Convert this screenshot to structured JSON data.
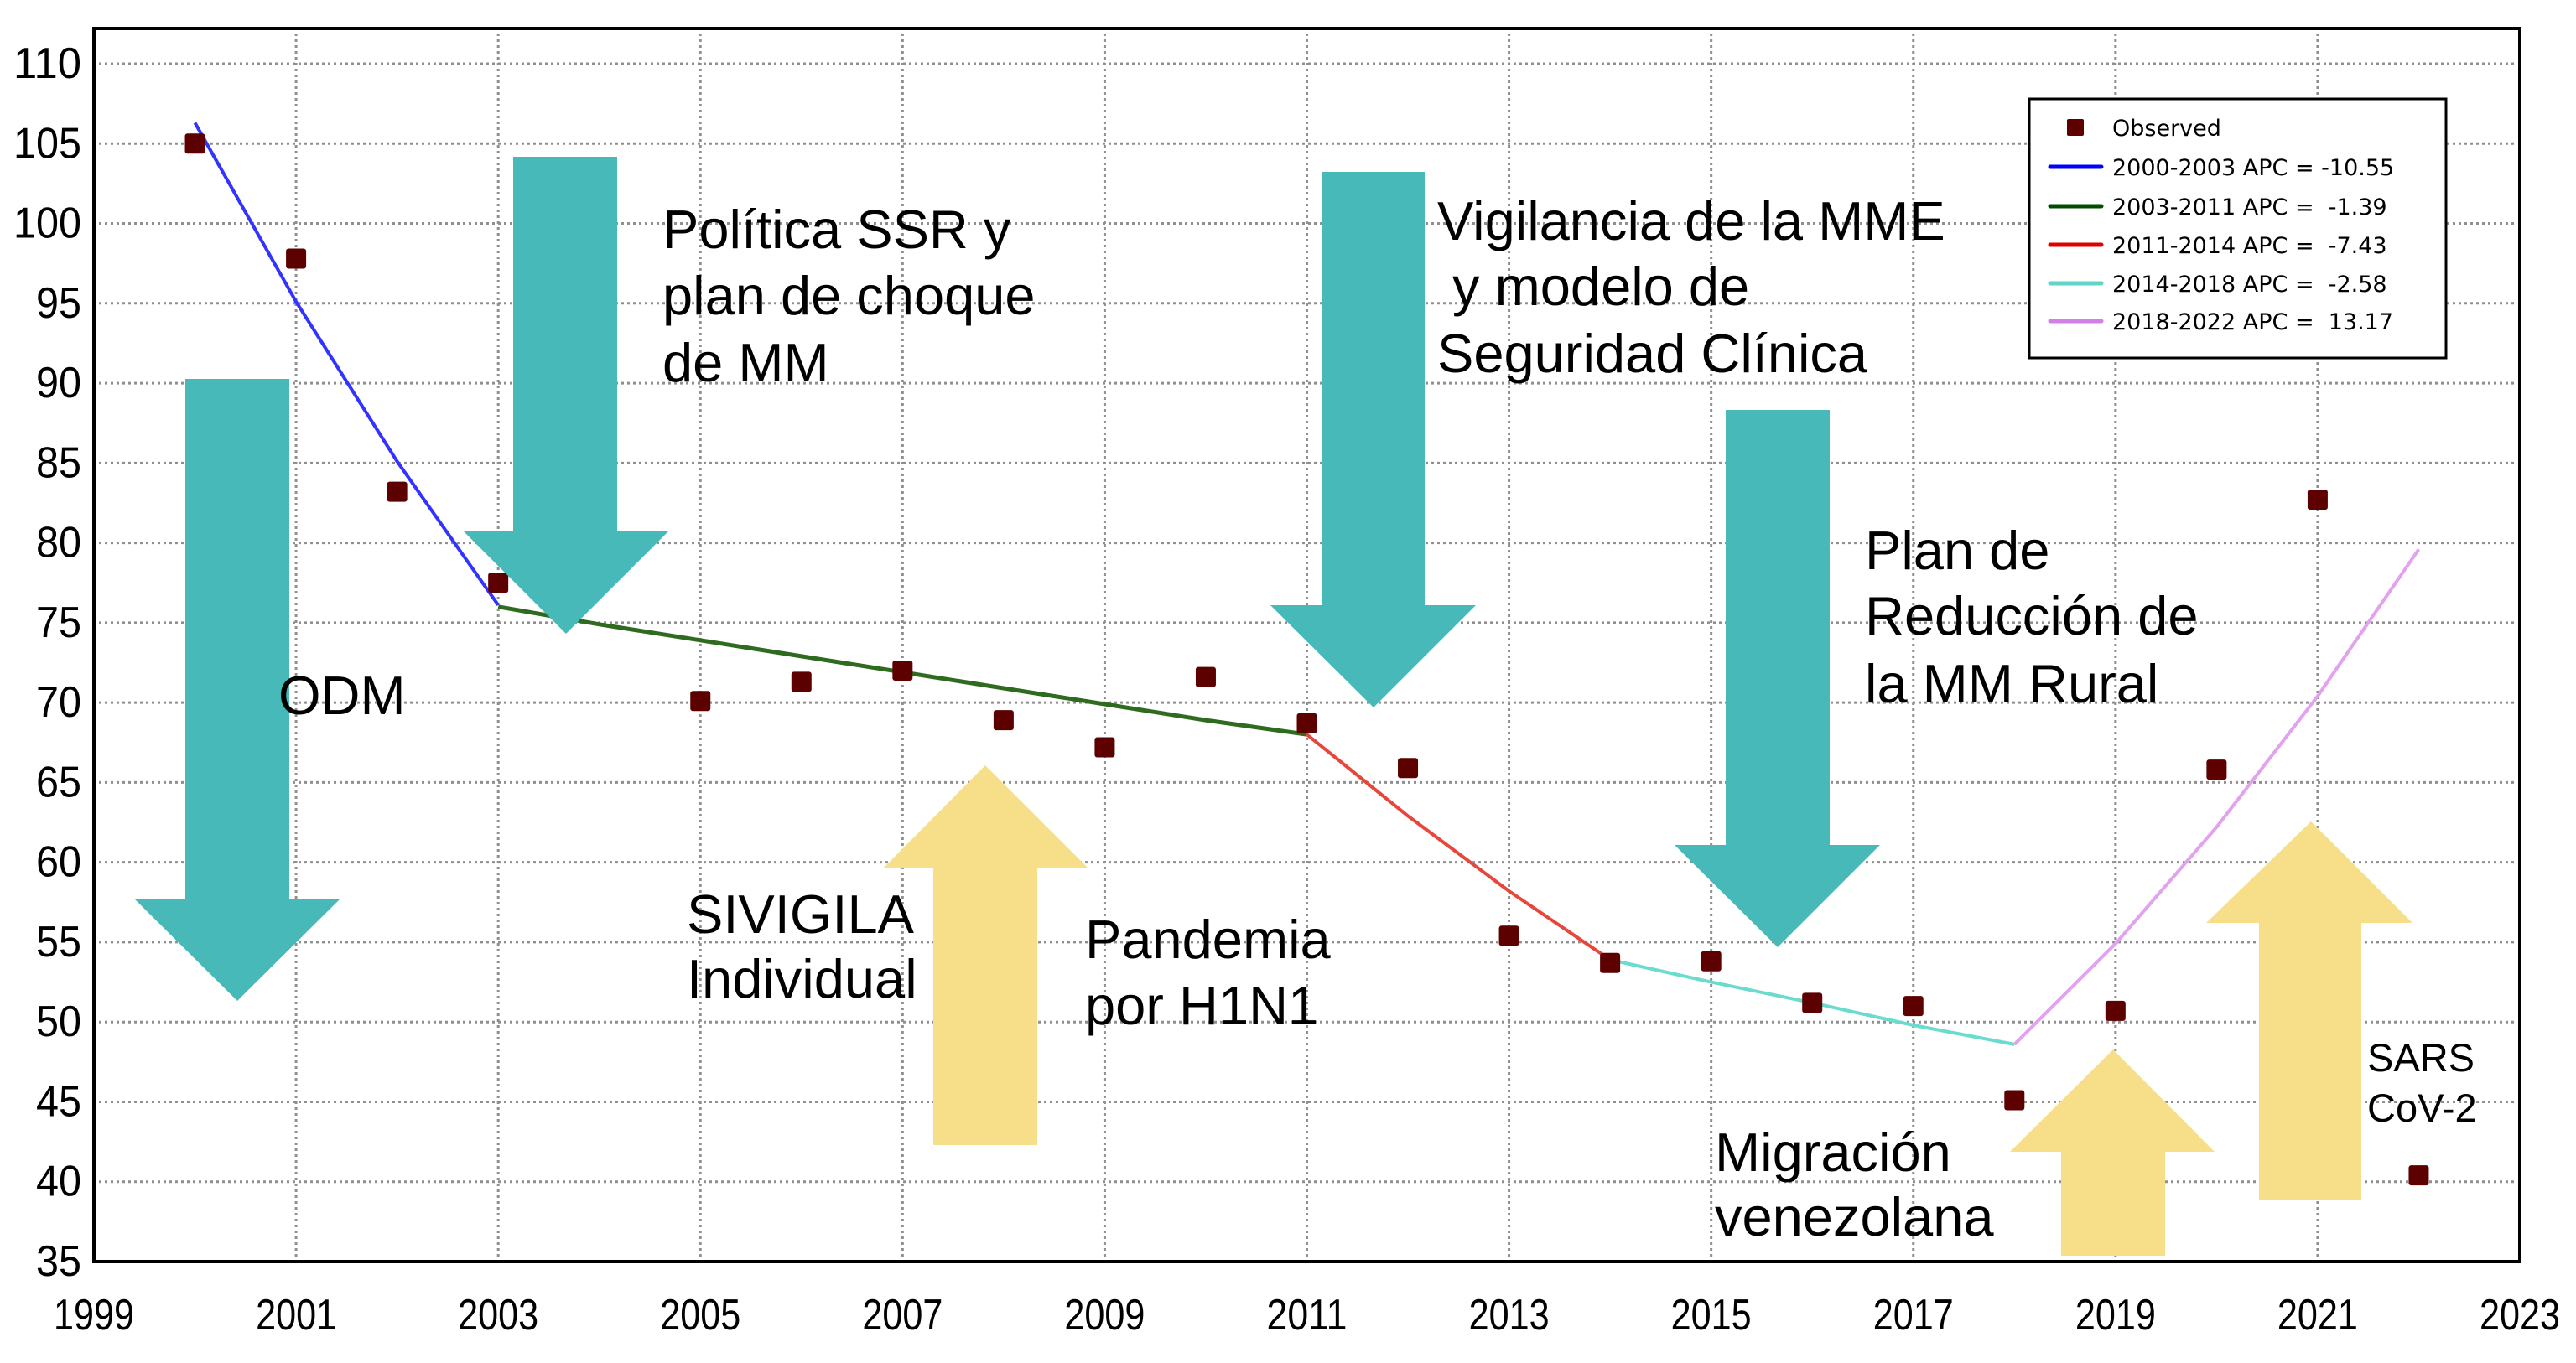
{
  "chart_data": {
    "type": "scatter",
    "title": "",
    "xlabel": "",
    "ylabel": "",
    "xlim": [
      1999,
      2023
    ],
    "ylim": [
      35,
      110
    ],
    "grid": true,
    "legend_position": "top-right",
    "xticks": [
      "1999",
      "2001",
      "2003",
      "2005",
      "2007",
      "2009",
      "2011",
      "2013",
      "2015",
      "2017",
      "2019",
      "2021",
      "2023"
    ],
    "yticks": [
      "35",
      "40",
      "45",
      "50",
      "55",
      "60",
      "65",
      "70",
      "75",
      "80",
      "85",
      "90",
      "95",
      "100",
      "105",
      "110"
    ],
    "observed": {
      "name": "Observed",
      "color": "#5C0000",
      "x": [
        2000,
        2001,
        2002,
        2003,
        2005,
        2006,
        2007,
        2008,
        2009,
        2010,
        2011,
        2012,
        2013,
        2014,
        2015,
        2016,
        2017,
        2018,
        2019,
        2020,
        2021,
        2022
      ],
      "y": [
        105.0,
        97.8,
        83.2,
        77.5,
        70.1,
        71.3,
        72.0,
        68.9,
        67.2,
        71.6,
        68.7,
        65.9,
        55.4,
        53.7,
        53.8,
        51.2,
        51.0,
        45.1,
        50.7,
        65.8,
        82.7,
        40.4
      ]
    },
    "series": [
      {
        "name": "2000-2003 APC = -10.55",
        "color": "#0000FF",
        "x": [
          2000,
          2001,
          2002,
          2003
        ],
        "y": [
          106.3,
          95.1,
          85.1,
          76.1
        ]
      },
      {
        "name": "2003-2011 APC =  -1.39",
        "color": "#004D00",
        "x": [
          2003,
          2004,
          2005,
          2006,
          2007,
          2008,
          2009,
          2010,
          2011
        ],
        "y": [
          76.0,
          74.9,
          73.9,
          72.9,
          71.9,
          70.9,
          69.9,
          68.9,
          68.0
        ]
      },
      {
        "name": "2011-2014 APC =  -7.43",
        "color": "#E00000",
        "x": [
          2011,
          2012,
          2013,
          2014
        ],
        "y": [
          68.0,
          62.9,
          58.2,
          53.9
        ]
      },
      {
        "name": "2014-2018 APC =  -2.58",
        "color": "#5FD5C8",
        "x": [
          2014,
          2015,
          2016,
          2017,
          2018
        ],
        "y": [
          53.9,
          52.5,
          51.2,
          49.8,
          48.6
        ]
      },
      {
        "name": "2018-2022 APC =  13.17",
        "color": "#D27FE6",
        "x": [
          2018,
          2019,
          2020,
          2021,
          2022
        ],
        "y": [
          48.6,
          54.9,
          62.2,
          70.4,
          79.6
        ]
      }
    ],
    "annotations": [
      {
        "lines": [
          "ODM"
        ],
        "direction": "down",
        "color": "#47B9B9"
      },
      {
        "lines": [
          "Política SSR y",
          "plan de choque",
          "de MM"
        ],
        "direction": "down",
        "color": "#47B9B9"
      },
      {
        "lines": [
          "Vigilancia de la MME",
          " y modelo de",
          "Seguridad Clínica"
        ],
        "direction": "down",
        "color": "#47B9B9"
      },
      {
        "lines": [
          "Plan de",
          "Reducción de",
          "la MM Rural"
        ],
        "direction": "down",
        "color": "#47B9B9"
      },
      {
        "lines": [
          "SIVIGILA",
          "Individual"
        ],
        "direction": "up",
        "color": "#F7DF8A"
      },
      {
        "lines": [
          "Pandemia",
          "por H1N1"
        ],
        "direction": "up",
        "color": "#F7DF8A"
      },
      {
        "lines": [
          "Migración",
          "venezolana"
        ],
        "direction": "up",
        "color": "#F7DF8A"
      },
      {
        "lines": [
          "SARS",
          "CoV-2"
        ],
        "direction": "up",
        "color": "#F7DF8A"
      }
    ]
  }
}
